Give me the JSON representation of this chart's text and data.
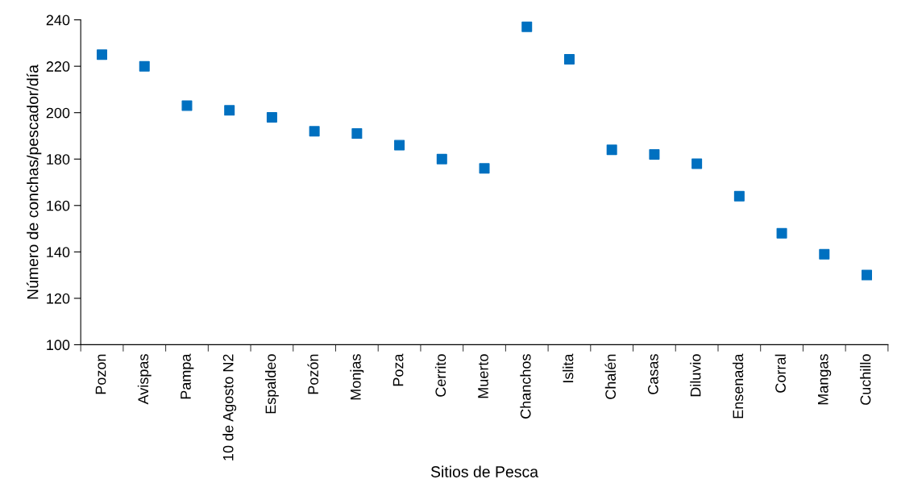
{
  "chart_data": {
    "type": "scatter",
    "xlabel": "Sitios de Pesca",
    "ylabel": "Número de conchas/pescador/día",
    "categories": [
      "Pozon",
      "Avispas",
      "Pampa",
      "10 de Agosto N2",
      "Espaldeo",
      "Pozón",
      "Monjas",
      "Poza",
      "Cerrito",
      "Muerto",
      "Chanchos",
      "Islita",
      "Chalén",
      "Casas",
      "Diluvio",
      "Ensenada",
      "Corral",
      "Mangas",
      "Cuchillo"
    ],
    "series": [
      {
        "color": "#0070c0",
        "values": [
          225,
          220,
          203,
          201,
          198,
          192,
          191,
          186,
          180,
          176,
          237,
          223,
          184,
          182,
          178,
          164,
          148,
          139,
          130
        ]
      }
    ],
    "ylim": [
      100,
      240
    ],
    "yticks": [
      100,
      120,
      140,
      160,
      180,
      200,
      220,
      240
    ],
    "grid": false,
    "legend": false,
    "marker": "square"
  }
}
